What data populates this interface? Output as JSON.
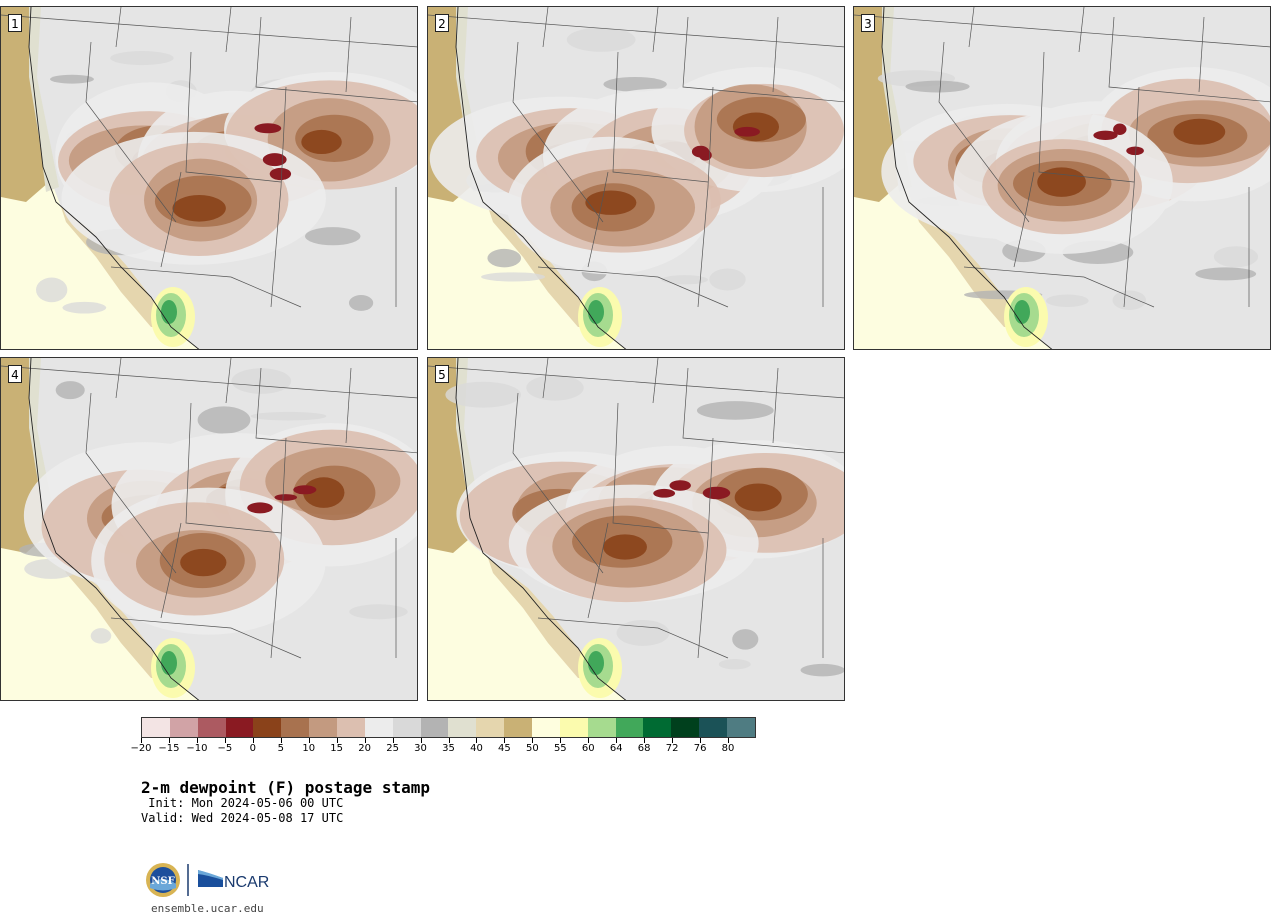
{
  "stamps": [
    {
      "label": "1"
    },
    {
      "label": "2"
    },
    {
      "label": "3"
    },
    {
      "label": "4"
    },
    {
      "label": "5"
    }
  ],
  "colorbar": {
    "colors": [
      "#f3e4e4",
      "#d1a3a6",
      "#ac5a61",
      "#8a1a22",
      "#8a421a",
      "#a8724f",
      "#c39a80",
      "#dcbfb0",
      "#ececec",
      "#d9d9d9",
      "#b3b3b3",
      "#e0e0d0",
      "#e5d6ae",
      "#c9b175",
      "#fefedf",
      "#fbfbae",
      "#a6db8f",
      "#41a85a",
      "#006b33",
      "#00401d",
      "#1b5257",
      "#4f7c82"
    ],
    "tick_labels": [
      "−20",
      "−15",
      "−10",
      "−5",
      "0",
      "5",
      "10",
      "15",
      "20",
      "25",
      "30",
      "35",
      "40",
      "45",
      "50",
      "55",
      "60",
      "64",
      "68",
      "72",
      "76",
      "80"
    ]
  },
  "title": "2-m dewpoint (F) postage stamp",
  "init": " Init: Mon 2024-05-06 00 UTC",
  "valid": "Valid: Wed 2024-05-08 17 UTC",
  "logo": {
    "nsf": "NSF",
    "ncar": "NCAR"
  },
  "url": "ensemble.ucar.edu"
}
